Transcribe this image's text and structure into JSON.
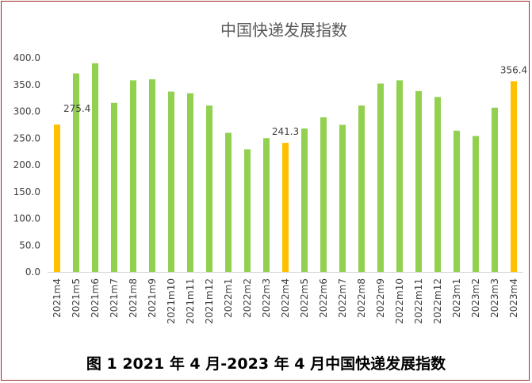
{
  "chart_data": {
    "type": "bar",
    "title": "中国快递发展指数",
    "categories": [
      "2021m4",
      "2021m5",
      "2021m6",
      "2021m7",
      "2021m8",
      "2021m9",
      "2021m10",
      "2021m11",
      "2021m12",
      "2022m1",
      "2022m2",
      "2022m3",
      "2022m4",
      "2022m5",
      "2022m6",
      "2022m7",
      "2022m8",
      "2022m9",
      "2022m10",
      "2022m11",
      "2022m12",
      "2023m1",
      "2023m2",
      "2023m3",
      "2023m4"
    ],
    "values": [
      275.4,
      371,
      390,
      316,
      358,
      360,
      337,
      334,
      311,
      260,
      229,
      250,
      241.3,
      268,
      289,
      275,
      311,
      352,
      358,
      338,
      327,
      264,
      254,
      307,
      356.4
    ],
    "highlight": [
      "2021m4",
      "2022m4",
      "2023m4"
    ],
    "data_labels": {
      "2021m4": "275.4",
      "2022m4": "241.3",
      "2023m4": "356.4"
    },
    "y_ticks": [
      "0.0",
      "50.0",
      "100.0",
      "150.0",
      "200.0",
      "250.0",
      "300.0",
      "350.0",
      "400.0"
    ],
    "ylim": [
      0,
      400
    ],
    "xlabel": "",
    "ylabel": "",
    "grid": false,
    "colors": {
      "bar": "#92d050",
      "highlight": "#ffc000",
      "axis": "#d9d9d9",
      "text": "#404040",
      "title": "#595959"
    }
  },
  "caption": "图 1 2021 年 4 月-2023 年 4 月中国快递发展指数"
}
